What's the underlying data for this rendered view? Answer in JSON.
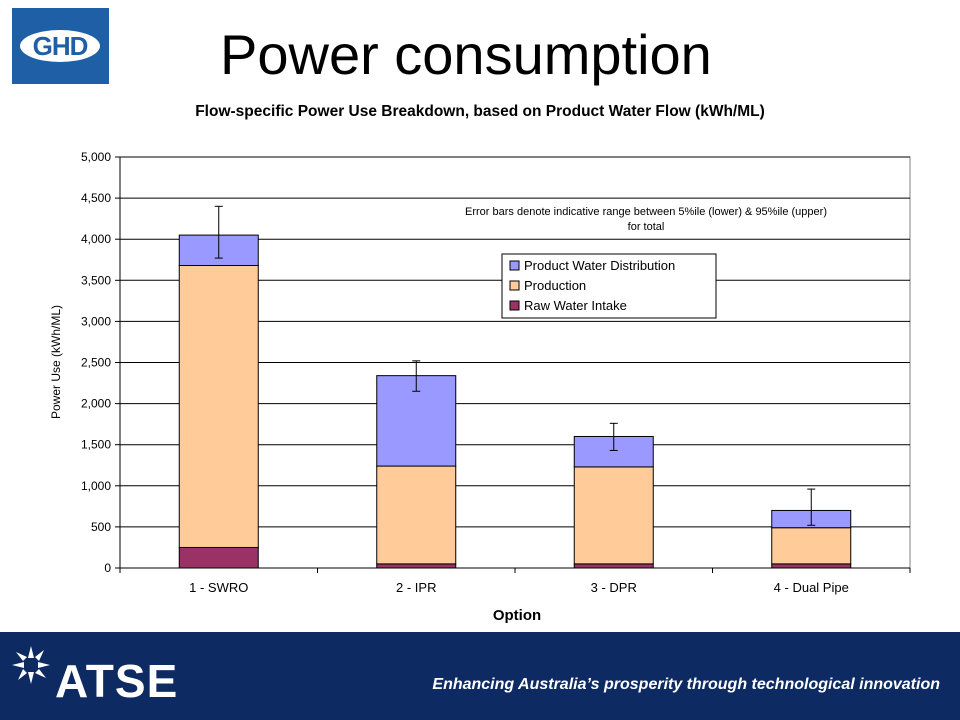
{
  "slide": {
    "title": "Power consumption",
    "logo_text": "GHD",
    "footer_logo_text": "ATSE",
    "footer_tagline": "Enhancing Australia’s prosperity through technological innovation"
  },
  "colors": {
    "logo_blue": "#1f5fa5",
    "footer_navy": "#0e2a63",
    "raw_water": "#993366",
    "production": "#ffcc99",
    "distribution": "#9999ff"
  },
  "chart_data": {
    "type": "bar",
    "stacked": true,
    "title": "Flow-specific Power Use Breakdown, based on Product Water Flow (kWh/ML)",
    "xlabel": "Option",
    "ylabel": "Power Use (kWh/ML)",
    "categories": [
      "1 - SWRO",
      "2 - IPR",
      "3 - DPR",
      "4 - Dual Pipe"
    ],
    "series": [
      {
        "name": "Raw Water Intake",
        "values": [
          250,
          50,
          50,
          50
        ],
        "color": "#993366"
      },
      {
        "name": "Production",
        "values": [
          3430,
          1190,
          1180,
          440
        ],
        "color": "#ffcc99"
      },
      {
        "name": "Product Water Distribution",
        "values": [
          370,
          1100,
          370,
          210
        ],
        "color": "#9999ff"
      }
    ],
    "error_bars": {
      "lower": [
        3770,
        2150,
        1430,
        520
      ],
      "upper": [
        4400,
        2520,
        1760,
        960
      ]
    },
    "ylim": [
      0,
      5000
    ],
    "yticks": [
      0,
      500,
      1000,
      1500,
      2000,
      2500,
      3000,
      3500,
      4000,
      4500,
      5000
    ],
    "ytick_labels": [
      "0",
      "500",
      "1,000",
      "1,500",
      "2,000",
      "2,500",
      "3,000",
      "3,500",
      "4,000",
      "4,500",
      "5,000"
    ],
    "grid": true,
    "legend_position": "top-right",
    "legend_order": [
      "Product Water Distribution",
      "Production",
      "Raw Water Intake"
    ],
    "annotation": [
      "Error bars denote indicative range between 5%ile (lower) & 95%ile (upper)",
      "for total"
    ]
  }
}
